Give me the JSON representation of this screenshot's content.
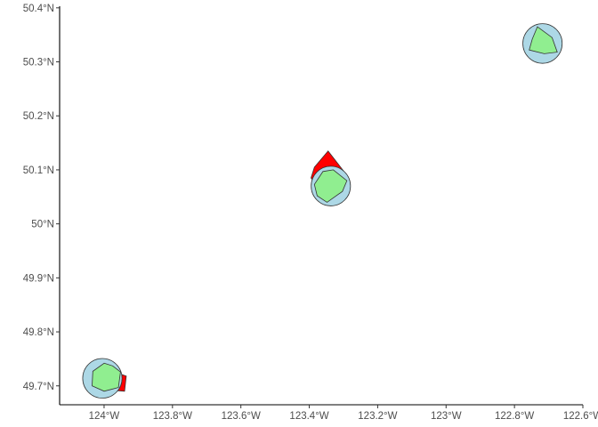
{
  "map": {
    "x_axis": {
      "ticks": [
        {
          "label": "124°W",
          "lon": -124.0
        },
        {
          "label": "123.8°W",
          "lon": -123.8
        },
        {
          "label": "123.6°W",
          "lon": -123.6
        },
        {
          "label": "123.4°W",
          "lon": -123.4
        },
        {
          "label": "123.2°W",
          "lon": -123.2
        },
        {
          "label": "123°W",
          "lon": -123.0
        },
        {
          "label": "122.8°W",
          "lon": -122.8
        },
        {
          "label": "122.6°W",
          "lon": -122.6
        }
      ],
      "lim": [
        -124.13,
        -122.6
      ]
    },
    "y_axis": {
      "ticks": [
        {
          "label": "49.7°N",
          "lat": 49.7
        },
        {
          "label": "49.8°N",
          "lat": 49.8
        },
        {
          "label": "49.9°N",
          "lat": 49.9
        },
        {
          "label": "50°N",
          "lat": 50.0
        },
        {
          "label": "50.1°N",
          "lat": 50.1
        },
        {
          "label": "50.2°N",
          "lat": 50.2
        },
        {
          "label": "50.3°N",
          "lat": 50.3
        },
        {
          "label": "50.4°N",
          "lat": 50.4
        }
      ],
      "lim": [
        49.665,
        50.403
      ]
    },
    "colors": {
      "red_fill": "#ff0000",
      "blue_fill": "#add8e6",
      "green_fill": "#90ee90",
      "outline": "#333333",
      "axis_line": "#000000",
      "tick_text": "#4d4d4d",
      "background": "#ffffff"
    },
    "features": [
      {
        "name": "red-polygon-upper",
        "kind": "polygon",
        "fill": "red_fill",
        "coords": [
          [
            -123.345,
            50.135
          ],
          [
            -123.29,
            50.09
          ],
          [
            -123.32,
            50.05
          ],
          [
            -123.36,
            50.055
          ],
          [
            -123.395,
            50.085
          ],
          [
            -123.385,
            50.105
          ]
        ]
      },
      {
        "name": "red-polygon-lower",
        "kind": "polygon",
        "fill": "red_fill",
        "coords": [
          [
            -124.02,
            49.705
          ],
          [
            -123.97,
            49.726
          ],
          [
            -123.935,
            49.718
          ],
          [
            -123.94,
            49.69
          ],
          [
            -123.985,
            49.692
          ],
          [
            -124.03,
            49.697
          ]
        ]
      },
      {
        "name": "blue-circle-upper-right",
        "kind": "circle",
        "fill": "blue_fill",
        "center": [
          -122.718,
          50.334
        ],
        "radius_lon": 0.0575,
        "radius_lat": 0.0367
      },
      {
        "name": "blue-circle-middle",
        "kind": "circle",
        "fill": "blue_fill",
        "center": [
          -123.337,
          50.07
        ],
        "radius_lon": 0.0575,
        "radius_lat": 0.0367
      },
      {
        "name": "blue-circle-lower-left",
        "kind": "circle",
        "fill": "blue_fill",
        "center": [
          -124.005,
          49.714
        ],
        "radius_lon": 0.0575,
        "radius_lat": 0.0367
      },
      {
        "name": "green-polygon-upper-right",
        "kind": "polygon",
        "fill": "green_fill",
        "coords": [
          [
            -122.733,
            50.365
          ],
          [
            -122.69,
            50.345
          ],
          [
            -122.675,
            50.318
          ],
          [
            -122.713,
            50.315
          ],
          [
            -122.757,
            50.322
          ],
          [
            -122.748,
            50.342
          ]
        ]
      },
      {
        "name": "green-polygon-middle",
        "kind": "polygon",
        "fill": "green_fill",
        "coords": [
          [
            -123.33,
            50.1
          ],
          [
            -123.29,
            50.08
          ],
          [
            -123.303,
            50.06
          ],
          [
            -123.348,
            50.04
          ],
          [
            -123.377,
            50.052
          ],
          [
            -123.385,
            50.073
          ],
          [
            -123.36,
            50.097
          ]
        ]
      },
      {
        "name": "green-polygon-lower-left",
        "kind": "polygon",
        "fill": "green_fill",
        "coords": [
          [
            -124.0,
            49.742
          ],
          [
            -123.975,
            49.737
          ],
          [
            -123.952,
            49.726
          ],
          [
            -123.958,
            49.697
          ],
          [
            -124.0,
            49.69
          ],
          [
            -124.035,
            49.7
          ],
          [
            -124.033,
            49.727
          ]
        ]
      }
    ]
  }
}
